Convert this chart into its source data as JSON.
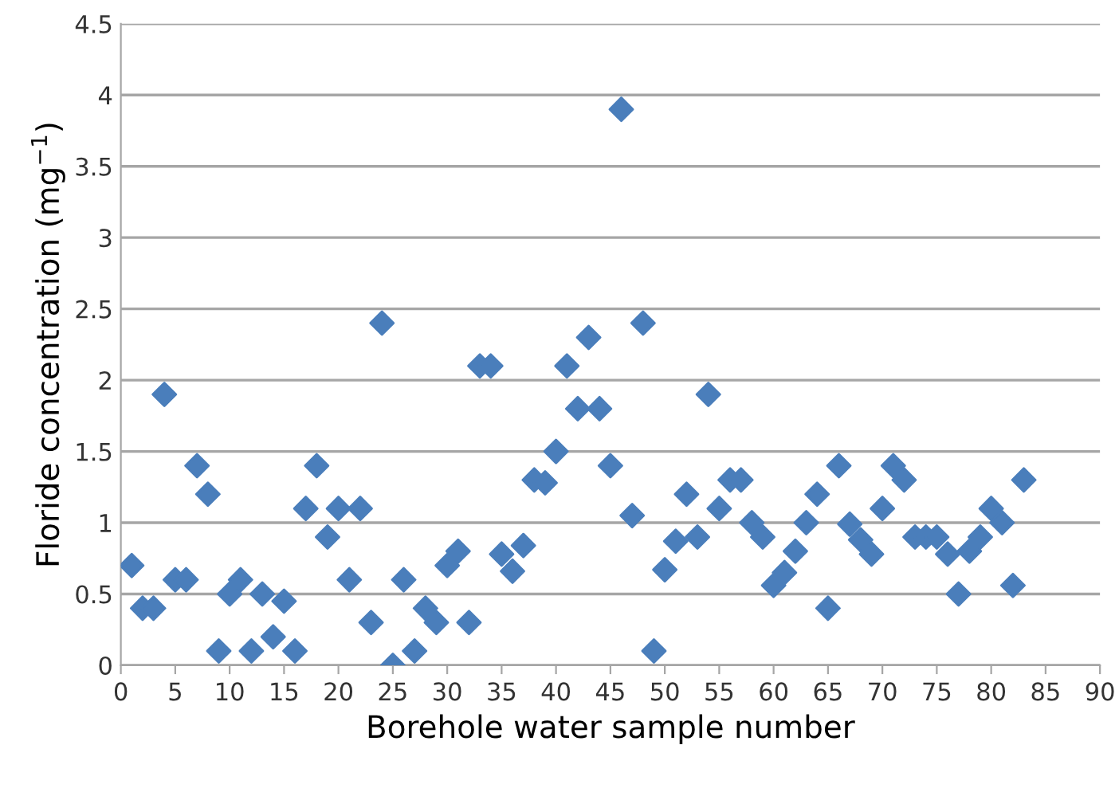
{
  "chart_data": {
    "type": "scatter",
    "xlabel": "Borehole water sample number",
    "ylabel": "Floride concentration (mg$^{−1}$)",
    "x": [
      1,
      2,
      3,
      4,
      5,
      6,
      7,
      8,
      9,
      10,
      11,
      12,
      13,
      14,
      15,
      16,
      17,
      18,
      19,
      20,
      21,
      22,
      23,
      24,
      25,
      26,
      27,
      28,
      29,
      30,
      31,
      32,
      33,
      34,
      35,
      36,
      37,
      38,
      39,
      40,
      41,
      42,
      43,
      44,
      45,
      46,
      47,
      48,
      49,
      50,
      51,
      52,
      53,
      54,
      55,
      56,
      57,
      58,
      59,
      60,
      61,
      62,
      63,
      64,
      65,
      66,
      67,
      68,
      69,
      70,
      71,
      72,
      73,
      74,
      75,
      76,
      77,
      78,
      79,
      80,
      81,
      82,
      83
    ],
    "series": [
      {
        "color": "#4a7ebb",
        "values": [
          0.7,
          0.4,
          0.4,
          1.9,
          0.6,
          0.6,
          1.4,
          1.2,
          0.1,
          0.5,
          0.6,
          0.1,
          0.5,
          0.2,
          0.45,
          0.1,
          1.1,
          1.4,
          0.9,
          1.1,
          0.6,
          1.1,
          0.3,
          2.4,
          0,
          0.6,
          0.1,
          0.4,
          0.3,
          0.7,
          0.8,
          0.3,
          2.1,
          2.1,
          0.78,
          0.66,
          0.84,
          1.3,
          1.28,
          1.5,
          2.1,
          1.8,
          2.3,
          1.8,
          1.4,
          3.9,
          1.05,
          2.4,
          0.1,
          0.67,
          0.87,
          1.2,
          0.9,
          1.9,
          1.1,
          1.3,
          1.3,
          1.0,
          0.9,
          0.56,
          0.65,
          0.8,
          1.0,
          1.2,
          0.4,
          1.4,
          0.99,
          0.88,
          0.78,
          1.1,
          1.4,
          1.3,
          0.9,
          0.9,
          0.9,
          0.78,
          0.5,
          0.8,
          0.9,
          1.1,
          1.0,
          0.56,
          1.3
        ]
      }
    ],
    "marker": "diamond",
    "grid": "y",
    "xlim": [
      0,
      90
    ],
    "xticks": [
      0,
      5,
      10,
      15,
      20,
      25,
      30,
      35,
      40,
      45,
      50,
      55,
      60,
      65,
      70,
      75,
      80,
      85,
      90
    ],
    "ylim": [
      0,
      4.5
    ],
    "yticks": [
      0,
      0.5,
      1,
      1.5,
      2,
      2.5,
      3,
      3.5,
      4,
      4.5
    ]
  }
}
